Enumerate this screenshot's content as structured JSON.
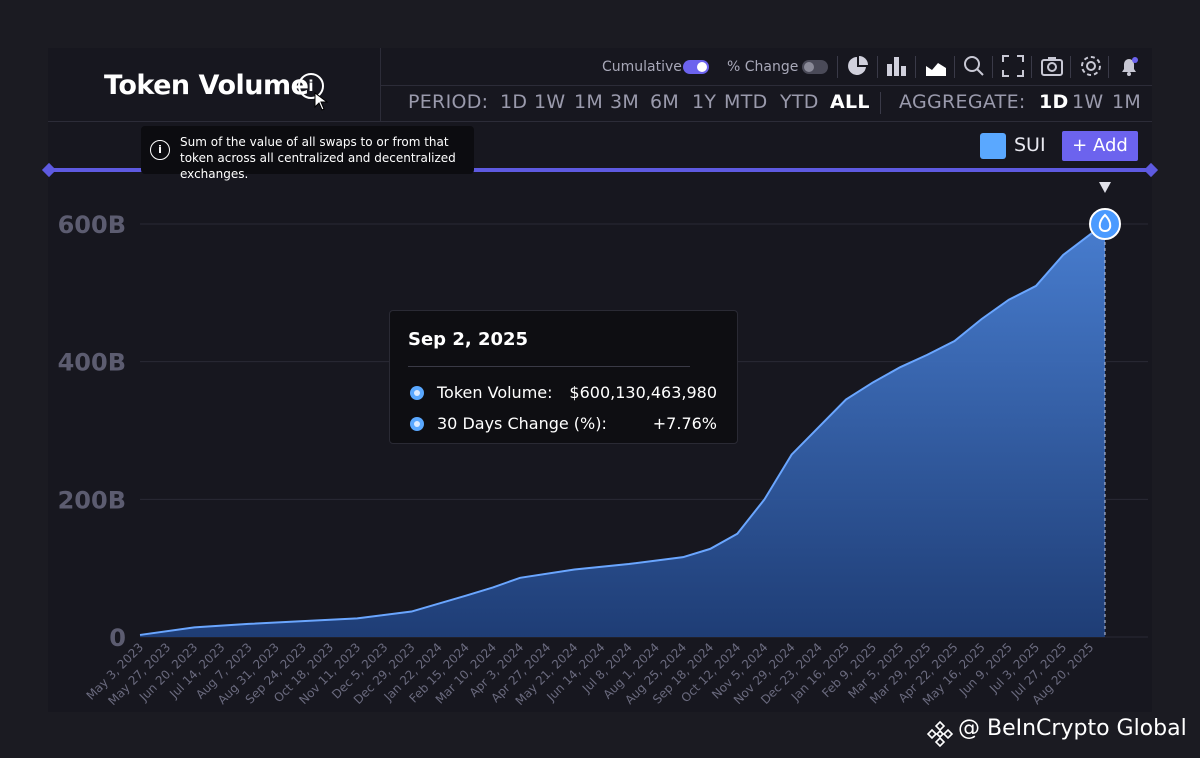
{
  "title": "Token Volume",
  "info_tooltip": "Sum of the value of all swaps to or from that token across all centralized and decentralized exchanges.",
  "toolbar": {
    "cumulative_label": "Cumulative",
    "cumulative_on": true,
    "pct_change_label": "% Change",
    "pct_change_on": false,
    "icons": [
      "pie-chart-icon",
      "bar-chart-icon",
      "area-chart-icon",
      "search-icon",
      "fullscreen-icon",
      "camera-icon",
      "settings-icon",
      "bell-icon"
    ]
  },
  "period": {
    "label": "PERIOD:",
    "options": [
      "1D",
      "1W",
      "1M",
      "3M",
      "6M",
      "1Y",
      "MTD",
      "YTD",
      "ALL"
    ],
    "selected": "ALL"
  },
  "aggregate": {
    "label": "AGGREGATE:",
    "options": [
      "1D",
      "1W",
      "1M"
    ],
    "selected": "1D"
  },
  "series_label": "SUI",
  "add_label": "+ Add",
  "colors": {
    "accent": "#6c63ee",
    "series": "#5aa8ff",
    "area_top": "#4a82d8",
    "area_bottom": "#1f3f7a",
    "background": "#17171f"
  },
  "hover": {
    "date": "Sep 2, 2025",
    "rows": [
      {
        "label": "Token Volume:",
        "value": "$600,130,463,980"
      },
      {
        "label": "30 Days Change (%):",
        "value": "+7.76%"
      }
    ]
  },
  "watermark": "@ BeInCrypto Global",
  "chart_data": {
    "type": "area",
    "title": "Token Volume",
    "y_ticks": [
      "0",
      "200B",
      "400B",
      "600B"
    ],
    "ylim": [
      0,
      600
    ],
    "y_unit": "B",
    "x_tick_labels": [
      "May 3, 2023",
      "May 27, 2023",
      "Jun 20, 2023",
      "Jul 14, 2023",
      "Aug 7, 2023",
      "Aug 31, 2023",
      "Sep 24, 2023",
      "Oct 18, 2023",
      "Nov 11, 2023",
      "Dec 5, 2023",
      "Dec 29, 2023",
      "Jan 22, 2024",
      "Feb 15, 2024",
      "Mar 10, 2024",
      "Apr 3, 2024",
      "Apr 27, 2024",
      "May 21, 2024",
      "Jun 14, 2024",
      "Jul 8, 2024",
      "Aug 1, 2024",
      "Aug 25, 2024",
      "Sep 18, 2024",
      "Oct 12, 2024",
      "Nov 5, 2024",
      "Nov 29, 2024",
      "Dec 23, 2024",
      "Jan 16, 2025",
      "Feb 9, 2025",
      "Mar 5, 2025",
      "Mar 29, 2025",
      "Apr 22, 2025",
      "May 16, 2025",
      "Jun 9, 2025",
      "Jul 3, 2025",
      "Jul 27, 2025",
      "Aug 20, 2025"
    ],
    "series": [
      {
        "name": "SUI",
        "x": [
          "May 3, 2023",
          "Jun 20, 2023",
          "Aug 7, 2023",
          "Sep 24, 2023",
          "Nov 11, 2023",
          "Dec 29, 2023",
          "Feb 15, 2024",
          "Mar 10, 2024",
          "Apr 3, 2024",
          "May 21, 2024",
          "Jul 8, 2024",
          "Aug 25, 2024",
          "Sep 18, 2024",
          "Oct 12, 2024",
          "Nov 5, 2024",
          "Nov 29, 2024",
          "Dec 23, 2024",
          "Jan 16, 2025",
          "Feb 9, 2025",
          "Mar 5, 2025",
          "Mar 29, 2025",
          "Apr 22, 2025",
          "May 16, 2025",
          "Jun 9, 2025",
          "Jul 3, 2025",
          "Jul 27, 2025",
          "Aug 20, 2025",
          "Sep 2, 2025"
        ],
        "values": [
          3,
          14,
          19,
          23,
          27,
          37,
          60,
          72,
          86,
          98,
          106,
          116,
          128,
          150,
          200,
          265,
          305,
          345,
          370,
          392,
          410,
          430,
          462,
          490,
          510,
          555,
          585,
          600
        ]
      }
    ],
    "hover_marker": {
      "x": "Sep 2, 2025",
      "value": 600
    }
  }
}
